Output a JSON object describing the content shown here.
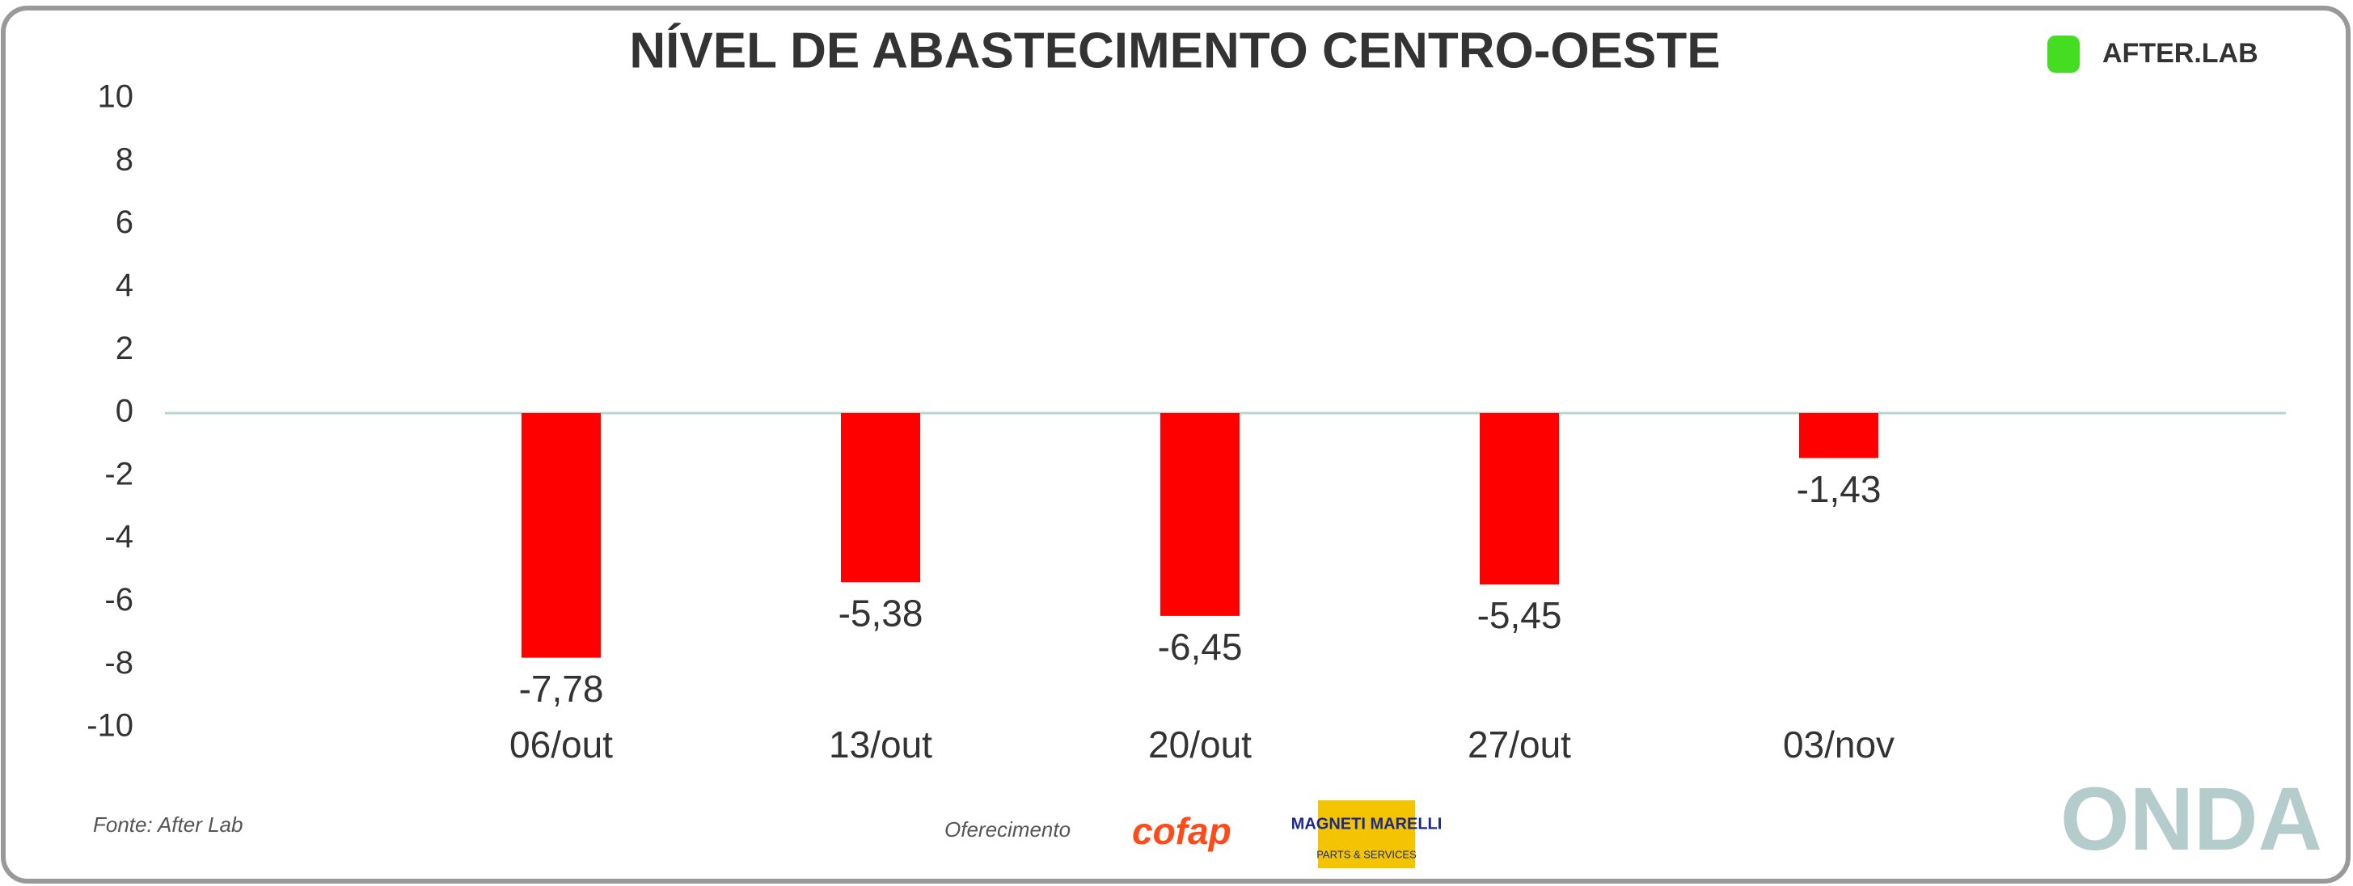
{
  "chart_data": {
    "type": "bar",
    "title": "NÍVEL DE ABASTECIMENTO CENTRO-OESTE",
    "categories": [
      "06/out",
      "13/out",
      "20/out",
      "27/out",
      "03/nov"
    ],
    "values": [
      -7.78,
      -5.38,
      -6.45,
      -5.45,
      -1.43
    ],
    "value_labels": [
      "-7,78",
      "-5,38",
      "-6,45",
      "-5,45",
      "-1,43"
    ],
    "color": "#ff0000",
    "ylim": [
      -10,
      10
    ],
    "yticks": [
      -10,
      -8,
      -6,
      -4,
      -2,
      0,
      2,
      4,
      6,
      8,
      10
    ],
    "grid": false,
    "source": "Fonte: After Lab",
    "sponsor_label": "Oferecimento",
    "logos": {
      "afterlab": "AFTER.LAB",
      "cofap": "cofap",
      "magneti_marelli": "MAGNETI MARELLI",
      "magneti_sub": "PARTS & SERVICES",
      "onda": "ONDA"
    }
  }
}
